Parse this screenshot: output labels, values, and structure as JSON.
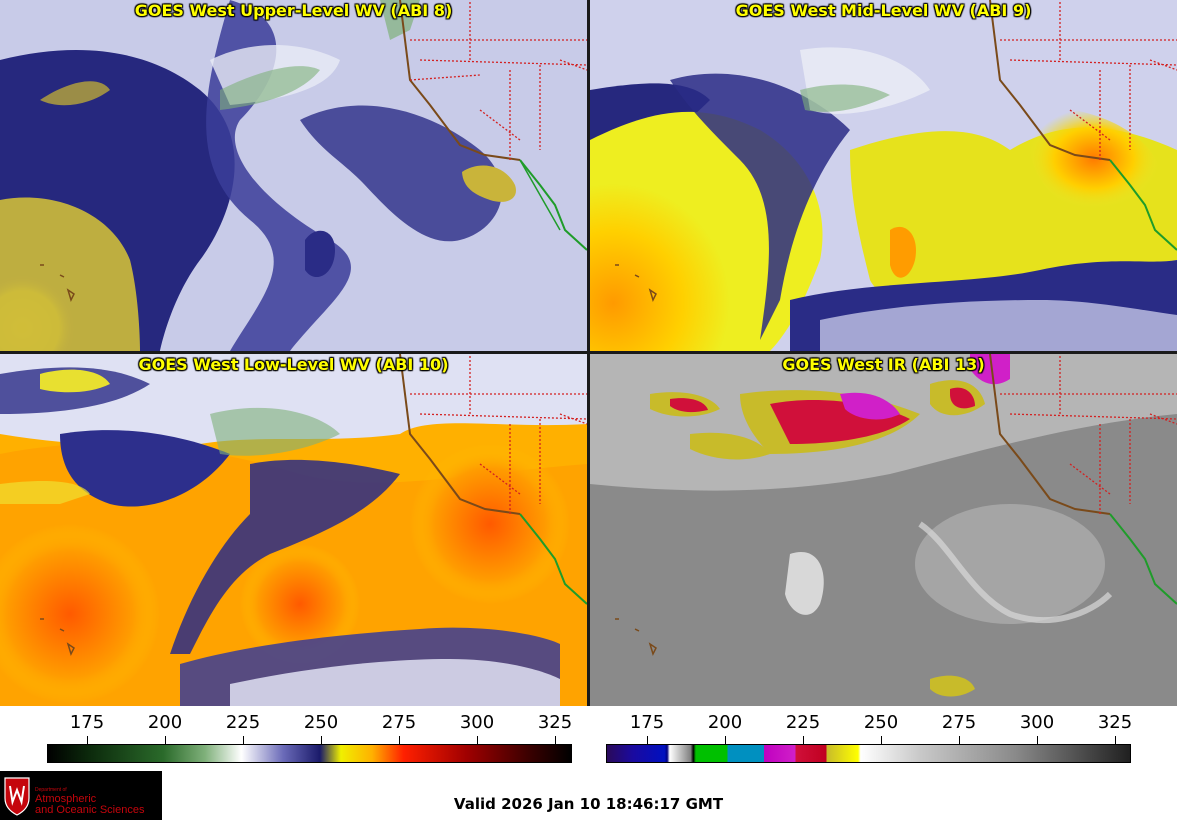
{
  "panels": {
    "upper": {
      "title": "GOES West Upper-Level WV (ABI 8)"
    },
    "mid": {
      "title": "GOES West Mid-Level WV (ABI 9)"
    },
    "low": {
      "title": "GOES West Low-Level WV (ABI 10)"
    },
    "ir": {
      "title": "GOES West IR (ABI 13)"
    }
  },
  "colorbars": {
    "wv": {
      "ticks": [
        "175",
        "200",
        "225",
        "250",
        "275",
        "300",
        "325"
      ]
    },
    "ir": {
      "ticks": [
        "175",
        "200",
        "225",
        "250",
        "275",
        "300",
        "325"
      ]
    }
  },
  "logo": {
    "department": "Department of",
    "line1": "Atmospheric",
    "line2": "and Oceanic Sciences"
  },
  "valid_time": "Valid 2026 Jan 10 18:46:17 GMT",
  "colors": {
    "title_text": "#ffff00",
    "state_borders": "#d32020",
    "coastline": "#7a4a1a",
    "mexico_coast": "#1f9c2a"
  }
}
